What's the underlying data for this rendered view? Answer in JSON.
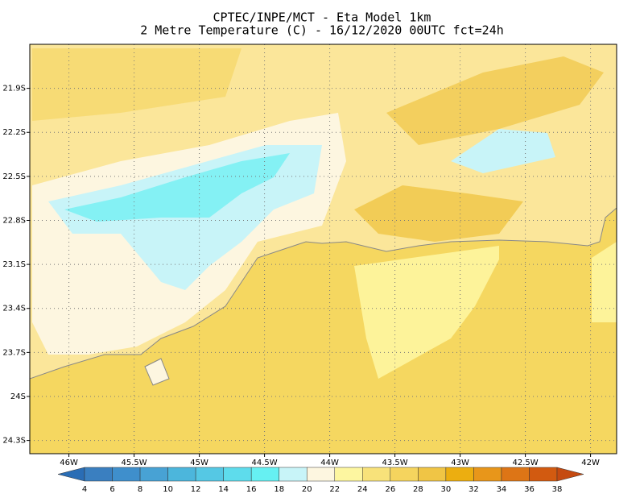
{
  "title": "CPTEC/INPE/MCT -  Eta Model 1km",
  "subtitle": "2 Metre Temperature (C) - 16/12/2020 00UTC fct=24h",
  "map": {
    "xlim": [
      -46.3,
      -41.8
    ],
    "ylim": [
      -24.39,
      -21.6
    ],
    "lon_ticks": [
      {
        "value": -46,
        "label": "46W"
      },
      {
        "value": -45.5,
        "label": "45.5W"
      },
      {
        "value": -45,
        "label": "45W"
      },
      {
        "value": -44.5,
        "label": "44.5W"
      },
      {
        "value": -44,
        "label": "44W"
      },
      {
        "value": -43.5,
        "label": "43.5W"
      },
      {
        "value": -43,
        "label": "43W"
      },
      {
        "value": -42.5,
        "label": "42.5W"
      },
      {
        "value": -42,
        "label": "42W"
      }
    ],
    "lat_ticks": [
      {
        "value": -21.9,
        "label": "21.9S"
      },
      {
        "value": -22.2,
        "label": "22.2S"
      },
      {
        "value": -22.5,
        "label": "22.5S"
      },
      {
        "value": -22.8,
        "label": "22.8S"
      },
      {
        "value": -23.1,
        "label": "23.1S"
      },
      {
        "value": -23.4,
        "label": "23.4S"
      },
      {
        "value": -23.7,
        "label": "23.7S"
      },
      {
        "value": -24,
        "label": "24S"
      },
      {
        "value": -24.3,
        "label": "24.3S"
      }
    ]
  },
  "colorbar": {
    "levels": [
      4,
      6,
      8,
      10,
      12,
      14,
      16,
      18,
      20,
      22,
      24,
      26,
      28,
      30,
      32,
      34,
      36,
      38
    ],
    "colors": [
      "#2a6db5",
      "#3a7fc0",
      "#3f8fcc",
      "#48a2d4",
      "#4cb6dc",
      "#55c8e4",
      "#5edcec",
      "#66f0f2",
      "#c8f4f8",
      "#fdf6e0",
      "#fdf6a0",
      "#f8e27a",
      "#f5d45e",
      "#f0c545",
      "#ecae10",
      "#e8961a",
      "#dd7516",
      "#d25a10",
      "#c54a10"
    ]
  }
}
